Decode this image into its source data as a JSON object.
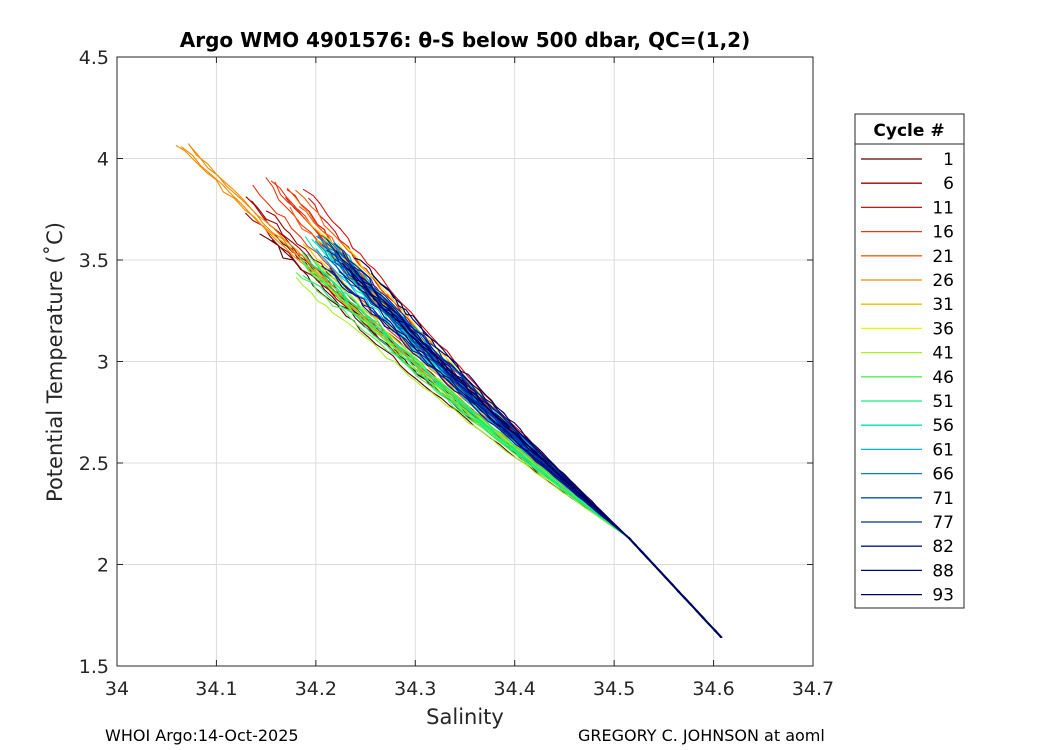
{
  "chart_data": {
    "type": "line",
    "title": "Argo WMO 4901576: θ-S below 500 dbar,  QC=(1,2)",
    "xlabel": "Salinity",
    "ylabel": "Potential Temperature (˚C)",
    "xlim": [
      34.0,
      34.7
    ],
    "ylim": [
      1.5,
      4.5
    ],
    "xticks": [
      "34",
      "34.1",
      "34.2",
      "34.3",
      "34.4",
      "34.5",
      "34.6",
      "34.7"
    ],
    "xtick_values": [
      34.0,
      34.1,
      34.2,
      34.3,
      34.4,
      34.5,
      34.6,
      34.7
    ],
    "yticks": [
      "1.5",
      "2",
      "2.5",
      "3",
      "3.5",
      "4",
      "4.5"
    ],
    "ytick_values": [
      1.5,
      2.0,
      2.5,
      3.0,
      3.5,
      4.0,
      4.5
    ],
    "grid": true,
    "legend": {
      "title": "Cycle #",
      "placement": "outside-right",
      "entries": [
        "1",
        "6",
        "11",
        "16",
        "21",
        "26",
        "31",
        "36",
        "41",
        "46",
        "51",
        "56",
        "61",
        "66",
        "71",
        "77",
        "82",
        "88",
        "93"
      ],
      "colors": [
        "#5a0000",
        "#a00000",
        "#d41010",
        "#e83a10",
        "#f06010",
        "#f08c00",
        "#e8c000",
        "#f0f000",
        "#a8f028",
        "#50f050",
        "#10f080",
        "#00e0c0",
        "#00b0e8",
        "#0080d0",
        "#0050b8",
        "#0030a0",
        "#001890",
        "#000878",
        "#000060"
      ]
    },
    "series": [
      {
        "name": "1",
        "anchor_s": 34.16,
        "anchor_t": 3.62,
        "steps": 0.0
      },
      {
        "name": "6",
        "anchor_s": 34.14,
        "anchor_t": 3.78,
        "steps": 0.1
      },
      {
        "name": "11",
        "anchor_s": 34.18,
        "anchor_t": 3.82,
        "steps": 0.2
      },
      {
        "name": "16",
        "anchor_s": 34.15,
        "anchor_t": 3.86,
        "steps": 0.3
      },
      {
        "name": "21",
        "anchor_s": 34.17,
        "anchor_t": 3.8,
        "steps": 0.4
      },
      {
        "name": "26",
        "anchor_s": 34.06,
        "anchor_t": 4.04,
        "steps": 0.5
      },
      {
        "name": "31",
        "anchor_s": 34.2,
        "anchor_t": 3.65,
        "steps": 0.6
      },
      {
        "name": "36",
        "anchor_s": 34.22,
        "anchor_t": 3.58,
        "steps": 0.7
      },
      {
        "name": "41",
        "anchor_s": 34.19,
        "anchor_t": 3.45,
        "steps": 0.8
      },
      {
        "name": "46",
        "anchor_s": 34.18,
        "anchor_t": 3.5,
        "steps": 0.9
      },
      {
        "name": "51",
        "anchor_s": 34.2,
        "anchor_t": 3.47,
        "steps": 1.0
      },
      {
        "name": "56",
        "anchor_s": 34.2,
        "anchor_t": 3.55,
        "steps": 1.1
      },
      {
        "name": "61",
        "anchor_s": 34.21,
        "anchor_t": 3.6,
        "steps": 1.2
      },
      {
        "name": "66",
        "anchor_s": 34.2,
        "anchor_t": 3.58,
        "steps": 1.3
      },
      {
        "name": "71",
        "anchor_s": 34.21,
        "anchor_t": 3.56,
        "steps": 1.4
      },
      {
        "name": "77",
        "anchor_s": 34.22,
        "anchor_t": 3.55,
        "steps": 1.5
      },
      {
        "name": "82",
        "anchor_s": 34.22,
        "anchor_t": 3.5,
        "steps": 1.6
      },
      {
        "name": "88",
        "anchor_s": 34.23,
        "anchor_t": 3.48,
        "steps": 1.7
      },
      {
        "name": "93",
        "anchor_s": 34.24,
        "anchor_t": 3.46,
        "steps": 1.8
      }
    ],
    "end_point": {
      "s": 34.608,
      "t": 1.64
    },
    "mid_point": {
      "s": 34.515,
      "t": 2.13
    }
  },
  "footer": {
    "left": "WHOI Argo:14-Oct-2025",
    "right": "GREGORY C. JOHNSON at aoml"
  }
}
